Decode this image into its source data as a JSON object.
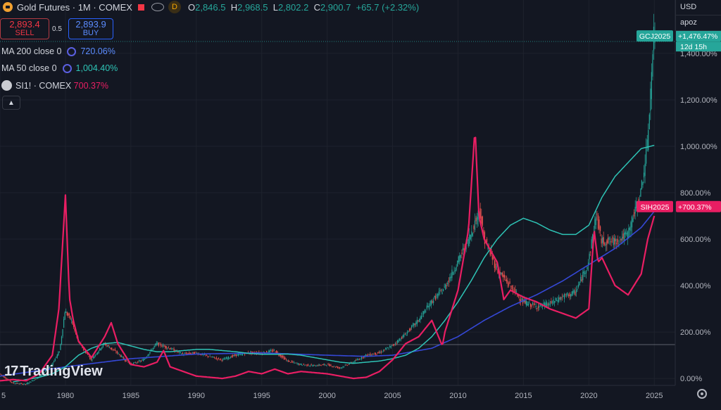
{
  "header": {
    "title": "Gold Futures · 1M · COMEX",
    "d_badge": "D",
    "o_key": "O",
    "o_val": "2,846.5",
    "h_key": "H",
    "h_val": "2,968.5",
    "l_key": "L",
    "l_val": "2,802.2",
    "c_key": "C",
    "c_val": "2,900.7",
    "change": "+65.7 (+2.32%)"
  },
  "trade": {
    "sell_price": "2,893.4",
    "sell_label": "SELL",
    "spread": "0.5",
    "buy_price": "2,893.9",
    "buy_label": "BUY"
  },
  "legend": [
    {
      "label": "MA 200 close 0",
      "value": "720.06%"
    },
    {
      "label": "MA 50 close 0",
      "value": "1,004.40%"
    },
    {
      "label": "SI1! · COMEX",
      "value": "700.37%"
    }
  ],
  "top_right": {
    "currency": "USD",
    "user": "apoz"
  },
  "brand": "TradingView",
  "colors": {
    "gold_up": "#26a69a",
    "gold_down": "#ef5350",
    "silver": "#e91e63",
    "ma50": "#2ec4b6",
    "ma200": "#3548d6",
    "ma200_value": "#5b8cff"
  },
  "chart_data": {
    "type": "line",
    "y_axis": {
      "unit": "percent",
      "range": [
        -30,
        1630
      ],
      "ticks": [
        "0.00%",
        "200.00%",
        "400.00%",
        "600.00%",
        "800.00%",
        "1,000.00%",
        "1,200.00%",
        "1,400.00%"
      ],
      "tick_values": [
        0,
        200,
        400,
        600,
        800,
        1000,
        1200,
        1400
      ]
    },
    "x_axis": {
      "range": [
        1975,
        2026.6
      ],
      "ticks": [
        "5",
        "1980",
        "1985",
        "1990",
        "1995",
        "2000",
        "2005",
        "2010",
        "2015",
        "2020",
        "2025"
      ],
      "tick_values": [
        1975,
        1980,
        1985,
        1990,
        1995,
        2000,
        2005,
        2010,
        2015,
        2020,
        2025
      ]
    },
    "series": [
      {
        "name": "GCJ2025",
        "x": [
          1975,
          1976,
          1977,
          1978,
          1979,
          1979.6,
          1980,
          1980.5,
          1981,
          1982,
          1983,
          1984,
          1985,
          1986,
          1987,
          1988,
          1989,
          1990,
          1991,
          1992,
          1993,
          1994,
          1995,
          1996,
          1997,
          1998,
          1999,
          2000,
          2001,
          2002,
          2003,
          2004,
          2005,
          2006,
          2007,
          2008,
          2009,
          2010,
          2011,
          2011.7,
          2012,
          2013,
          2014,
          2015,
          2016,
          2017,
          2018,
          2019,
          2020,
          2020.6,
          2021,
          2022,
          2023,
          2024,
          2024.5,
          2025
        ],
        "y": [
          20,
          -20,
          -25,
          5,
          60,
          120,
          290,
          250,
          160,
          80,
          150,
          110,
          60,
          80,
          150,
          130,
          105,
          110,
          95,
          80,
          100,
          110,
          110,
          120,
          75,
          60,
          55,
          60,
          45,
          70,
          100,
          110,
          140,
          190,
          250,
          330,
          390,
          500,
          620,
          730,
          610,
          470,
          400,
          330,
          310,
          320,
          350,
          370,
          500,
          710,
          590,
          590,
          620,
          800,
          1000,
          1475
        ],
        "end_label": "GCJ2025",
        "end_value": "+1,476.47%",
        "countdown": "12d 15h"
      },
      {
        "name": "SIH2025",
        "x": [
          1975,
          1976,
          1977,
          1978,
          1979,
          1979.5,
          1980,
          1980.3,
          1980.6,
          1981,
          1982,
          1983,
          1983.5,
          1984,
          1985,
          1986,
          1987,
          1987.5,
          1988,
          1989,
          1990,
          1991,
          1992,
          1993,
          1994,
          1995,
          1996,
          1997,
          1998,
          1999,
          2000,
          2001,
          2002,
          2003,
          2004,
          2005,
          2006,
          2007,
          2008,
          2008.8,
          2009,
          2010,
          2010.8,
          2011.3,
          2011.6,
          2012,
          2013,
          2013.5,
          2014,
          2015,
          2016,
          2017,
          2018,
          2019,
          2020,
          2020.4,
          2020.7,
          2021,
          2022,
          2023,
          2024,
          2024.5,
          2025
        ],
        "y": [
          -10,
          -5,
          -10,
          20,
          100,
          300,
          790,
          350,
          250,
          160,
          90,
          180,
          240,
          150,
          60,
          50,
          70,
          120,
          50,
          30,
          10,
          5,
          0,
          10,
          30,
          20,
          40,
          20,
          30,
          25,
          20,
          10,
          0,
          5,
          30,
          80,
          150,
          180,
          250,
          140,
          200,
          380,
          640,
          1080,
          700,
          600,
          500,
          340,
          380,
          350,
          330,
          300,
          280,
          260,
          300,
          640,
          500,
          520,
          400,
          360,
          450,
          600,
          700
        ],
        "end_label": "SIH2025",
        "end_value": "+700.37%"
      },
      {
        "name": "MA 50",
        "x": [
          1976,
          1977,
          1978,
          1979,
          1980,
          1981,
          1982,
          1983,
          1984,
          1985,
          1986,
          1987,
          1988,
          1989,
          1990,
          1991,
          1992,
          1993,
          1994,
          1995,
          1996,
          1997,
          1998,
          1999,
          2000,
          2001,
          2002,
          2003,
          2004,
          2005,
          2006,
          2007,
          2008,
          2009,
          2010,
          2011,
          2012,
          2013,
          2014,
          2015,
          2016,
          2017,
          2018,
          2019,
          2020,
          2021,
          2022,
          2023,
          2024,
          2025
        ],
        "y": [
          -15,
          -5,
          5,
          20,
          50,
          100,
          130,
          150,
          155,
          140,
          125,
          115,
          115,
          120,
          125,
          125,
          120,
          115,
          108,
          104,
          104,
          105,
          100,
          90,
          80,
          70,
          65,
          70,
          75,
          85,
          100,
          130,
          180,
          250,
          330,
          420,
          520,
          600,
          660,
          690,
          670,
          640,
          620,
          620,
          660,
          780,
          870,
          930,
          990,
          1004
        ]
      },
      {
        "name": "MA 200",
        "x": [
          1975,
          1980,
          1985,
          1990,
          1995,
          2000,
          2003,
          2005,
          2008,
          2010,
          2012,
          2014,
          2016,
          2018,
          2020,
          2022,
          2024,
          2025
        ],
        "y": [
          10,
          50,
          85,
          105,
          110,
          100,
          95,
          100,
          130,
          180,
          250,
          310,
          360,
          420,
          490,
          560,
          650,
          720
        ]
      }
    ]
  }
}
